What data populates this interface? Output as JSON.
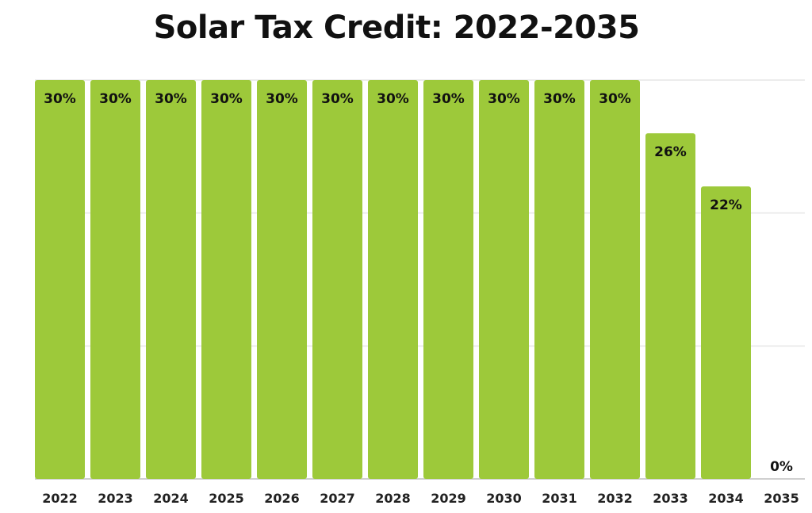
{
  "chart_data": {
    "type": "bar",
    "title": "Solar Tax Credit: 2022-2035",
    "xlabel": "",
    "ylabel": "",
    "categories": [
      "2022",
      "2023",
      "2024",
      "2025",
      "2026",
      "2027",
      "2028",
      "2029",
      "2030",
      "2031",
      "2032",
      "2033",
      "2034",
      "2035"
    ],
    "values": [
      30,
      30,
      30,
      30,
      30,
      30,
      30,
      30,
      30,
      30,
      30,
      26,
      22,
      0
    ],
    "data_labels": [
      "30%",
      "30%",
      "30%",
      "30%",
      "30%",
      "30%",
      "30%",
      "30%",
      "30%",
      "30%",
      "30%",
      "26%",
      "22%",
      "0%"
    ],
    "ylim": [
      0,
      30
    ],
    "gridlines": [
      0,
      10,
      20,
      30
    ],
    "grid": true,
    "y_tick_labels_shown": false,
    "bar_color": "#9dc93a",
    "legend": "none"
  }
}
